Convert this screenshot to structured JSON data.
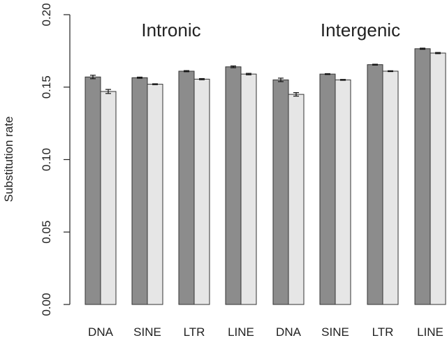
{
  "chart_data": {
    "type": "bar",
    "ylabel": "Substitution rate",
    "ylim": [
      0,
      0.2
    ],
    "yticks": [
      0.0,
      0.05,
      0.1,
      0.15,
      0.2
    ],
    "ytick_labels": [
      "0.00",
      "0.05",
      "0.10",
      "0.15",
      "0.20"
    ],
    "grid": false,
    "legend": "none",
    "groups": [
      {
        "label": "Intronic",
        "categories": [
          "DNA",
          "SINE",
          "LTR",
          "LINE"
        ],
        "series": [
          {
            "color": "#8c8c8c",
            "values": [
              0.157,
              0.1565,
              0.161,
              0.164
            ],
            "errors": [
              0.0012,
              0.0004,
              0.0004,
              0.0006
            ]
          },
          {
            "color": "#e6e6e6",
            "values": [
              0.147,
              0.152,
              0.1555,
              0.159
            ],
            "errors": [
              0.0014,
              0.0003,
              0.0004,
              0.0005
            ]
          }
        ]
      },
      {
        "label": "Intergenic",
        "categories": [
          "DNA",
          "SINE",
          "LTR",
          "LINE"
        ],
        "series": [
          {
            "color": "#8c8c8c",
            "values": [
              0.155,
              0.159,
              0.1655,
              0.1765
            ],
            "errors": [
              0.0012,
              0.0003,
              0.0003,
              0.0004
            ]
          },
          {
            "color": "#e6e6e6",
            "values": [
              0.145,
              0.155,
              0.161,
              0.1735
            ],
            "errors": [
              0.0012,
              0.0003,
              0.0003,
              0.0004
            ]
          }
        ]
      }
    ]
  }
}
